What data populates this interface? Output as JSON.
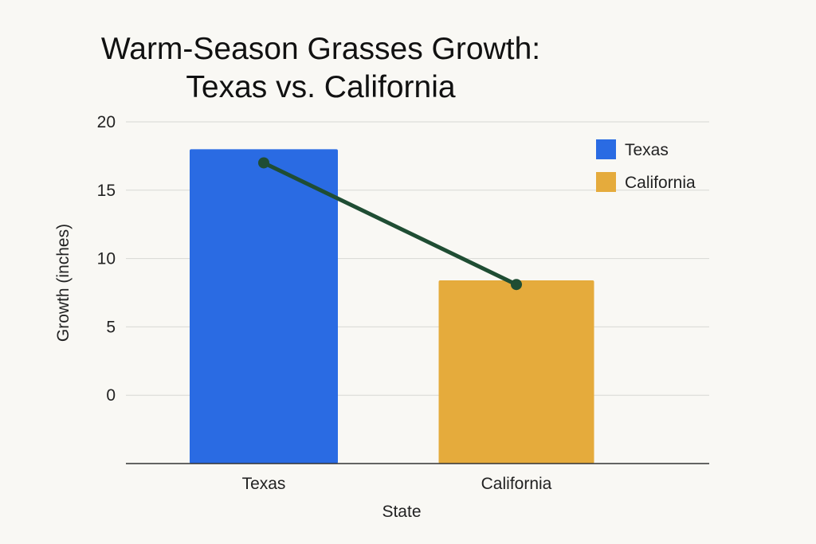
{
  "chart_data": {
    "type": "bar",
    "title_lines": [
      "Warm-Season Grasses Growth:",
      "Texas vs. California"
    ],
    "xlabel": "State",
    "ylabel": "Growth (inches)",
    "categories": [
      "Texas",
      "California"
    ],
    "values": [
      18,
      8.4
    ],
    "bar_colors": [
      "#2a6be3",
      "#e5ab3c"
    ],
    "line_overlay": {
      "values": [
        17,
        8.1
      ],
      "color": "#1f4d33"
    },
    "yticks": [
      0,
      5,
      10,
      15,
      20
    ],
    "ylim": [
      -5,
      20
    ],
    "grid": true,
    "legend": {
      "position": "top-right",
      "entries": [
        {
          "label": "Texas",
          "color": "#2a6be3"
        },
        {
          "label": "California",
          "color": "#e5ab3c"
        }
      ]
    }
  }
}
